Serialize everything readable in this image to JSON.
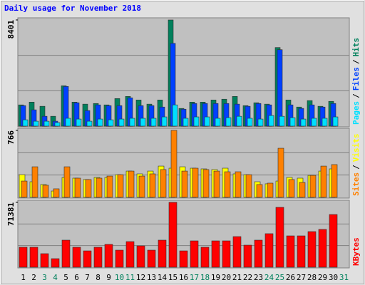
{
  "legend_separator": "/",
  "chart_data": [
    {
      "type": "bar",
      "title": "Daily usage for November 2018",
      "ylim": [
        0,
        8401
      ],
      "yticks": [
        8401
      ],
      "grid": true,
      "series": [
        {
          "name": "Hits",
          "color": "#00805c",
          "values": [
            1680,
            1900,
            1570,
            780,
            3190,
            1900,
            1740,
            1790,
            1680,
            2180,
            2350,
            2070,
            1740,
            2070,
            8401,
            1400,
            1900,
            1900,
            2070,
            2130,
            2350,
            1620,
            1850,
            1740,
            6220,
            2070,
            1510,
            2020,
            1570,
            1960,
            null
          ]
        },
        {
          "name": "Files",
          "color": "#0040ff",
          "values": [
            1620,
            1290,
            780,
            390,
            3140,
            1850,
            1230,
            1680,
            1620,
            1620,
            2240,
            1620,
            1620,
            1510,
            6550,
            1340,
            1790,
            1790,
            1790,
            1790,
            1740,
            1570,
            1790,
            1680,
            6050,
            1680,
            1400,
            1680,
            1510,
            1790,
            null
          ]
        },
        {
          "name": "Pages",
          "color": "#00e0ff",
          "values": [
            500,
            390,
            390,
            280,
            620,
            560,
            390,
            560,
            500,
            560,
            620,
            620,
            620,
            730,
            1680,
            620,
            730,
            730,
            620,
            670,
            780,
            620,
            560,
            840,
            780,
            670,
            560,
            620,
            620,
            730,
            null
          ]
        }
      ]
    },
    {
      "type": "bar",
      "ylim": [
        0,
        766
      ],
      "yticks": [
        766
      ],
      "grid": true,
      "series": [
        {
          "name": "Visits",
          "color": "#ffff00",
          "values": [
            260,
            179,
            147,
            73,
            228,
            220,
            204,
            228,
            228,
            260,
            301,
            269,
            301,
            358,
            334,
            350,
            334,
            326,
            318,
            334,
            269,
            260,
            179,
            155,
            187,
            228,
            220,
            252,
            301,
            326,
            null
          ]
        },
        {
          "name": "Sites",
          "color": "#ff8000",
          "values": [
            187,
            350,
            139,
            98,
            350,
            220,
            204,
            220,
            244,
            260,
            301,
            244,
            269,
            318,
            766,
            301,
            334,
            318,
            301,
            293,
            293,
            260,
            147,
            163,
            562,
            204,
            171,
            252,
            358,
            375,
            null
          ]
        }
      ]
    },
    {
      "type": "bar",
      "ylim": [
        0,
        71381
      ],
      "yticks": [
        71381
      ],
      "grid": true,
      "categories": [
        "1",
        "2",
        "3",
        "4",
        "5",
        "6",
        "7",
        "8",
        "9",
        "10",
        "11",
        "12",
        "13",
        "14",
        "15",
        "16",
        "17",
        "18",
        "19",
        "20",
        "21",
        "22",
        "23",
        "24",
        "25",
        "26",
        "27",
        "28",
        "29",
        "30",
        "31"
      ],
      "category_colors": [
        "#000000",
        "#000000",
        "#00805c",
        "#00805c",
        "#000000",
        "#000000",
        "#000000",
        "#000000",
        "#000000",
        "#00805c",
        "#00805c",
        "#000000",
        "#000000",
        "#000000",
        "#000000",
        "#000000",
        "#00805c",
        "#00805c",
        "#000000",
        "#000000",
        "#000000",
        "#000000",
        "#000000",
        "#00805c",
        "#00805c",
        "#000000",
        "#000000",
        "#000000",
        "#000000",
        "#000000",
        "#00805c"
      ],
      "series": [
        {
          "name": "KBytes",
          "color": "#ff0000",
          "values": [
            21960,
            21960,
            14900,
            9400,
            29800,
            21960,
            18000,
            21960,
            25100,
            18800,
            28200,
            23500,
            18800,
            29800,
            71381,
            18000,
            29000,
            21960,
            29000,
            29000,
            33700,
            24300,
            29800,
            36900,
            65900,
            34500,
            34500,
            39200,
            41600,
            58000,
            null
          ]
        }
      ]
    }
  ]
}
